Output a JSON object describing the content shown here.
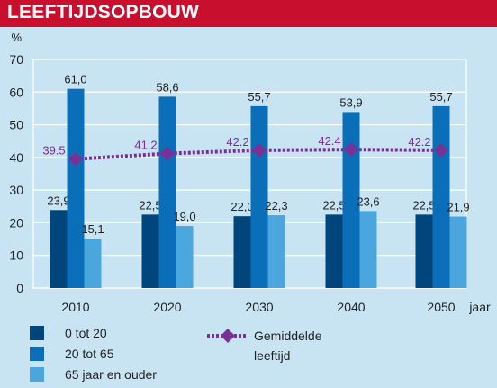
{
  "title": "LEEFTIJDSOPBOUW",
  "colors": {
    "header": "#c8102e",
    "background": "#c8e4f3",
    "series": [
      "#00457c",
      "#0a6fb8",
      "#4aa6dc"
    ],
    "average": "#7a3196"
  },
  "chart_data": {
    "type": "bar",
    "y_unit_label": "%",
    "x_unit_label": "jaar",
    "ylim": [
      0,
      70
    ],
    "yticks": [
      0,
      10,
      20,
      30,
      40,
      50,
      60,
      70
    ],
    "categories": [
      "2010",
      "2020",
      "2030",
      "2040",
      "2050"
    ],
    "series": [
      {
        "name": "0 tot 20",
        "values": [
          23.9,
          22.5,
          22.0,
          22.5,
          22.5
        ],
        "labels": [
          "23,9",
          "22,5",
          "22,0",
          "22,5",
          "22,5"
        ]
      },
      {
        "name": "20 tot 65",
        "values": [
          61.0,
          58.6,
          55.7,
          53.9,
          55.7
        ],
        "labels": [
          "61,0",
          "58,6",
          "55,7",
          "53,9",
          "55,7"
        ]
      },
      {
        "name": "65 jaar en ouder",
        "values": [
          15.1,
          19.0,
          22.3,
          23.6,
          21.9
        ],
        "labels": [
          "15,1",
          "19,0",
          "22,3",
          "23,6",
          "21,9"
        ]
      }
    ],
    "line": {
      "name_line1": "Gemiddelde",
      "name_line2": "leeftijd",
      "values": [
        39.5,
        41.2,
        42.2,
        42.4,
        42.2
      ],
      "labels": [
        "39.5",
        "41.2",
        "42.2",
        "42.4",
        "42.2"
      ]
    }
  }
}
